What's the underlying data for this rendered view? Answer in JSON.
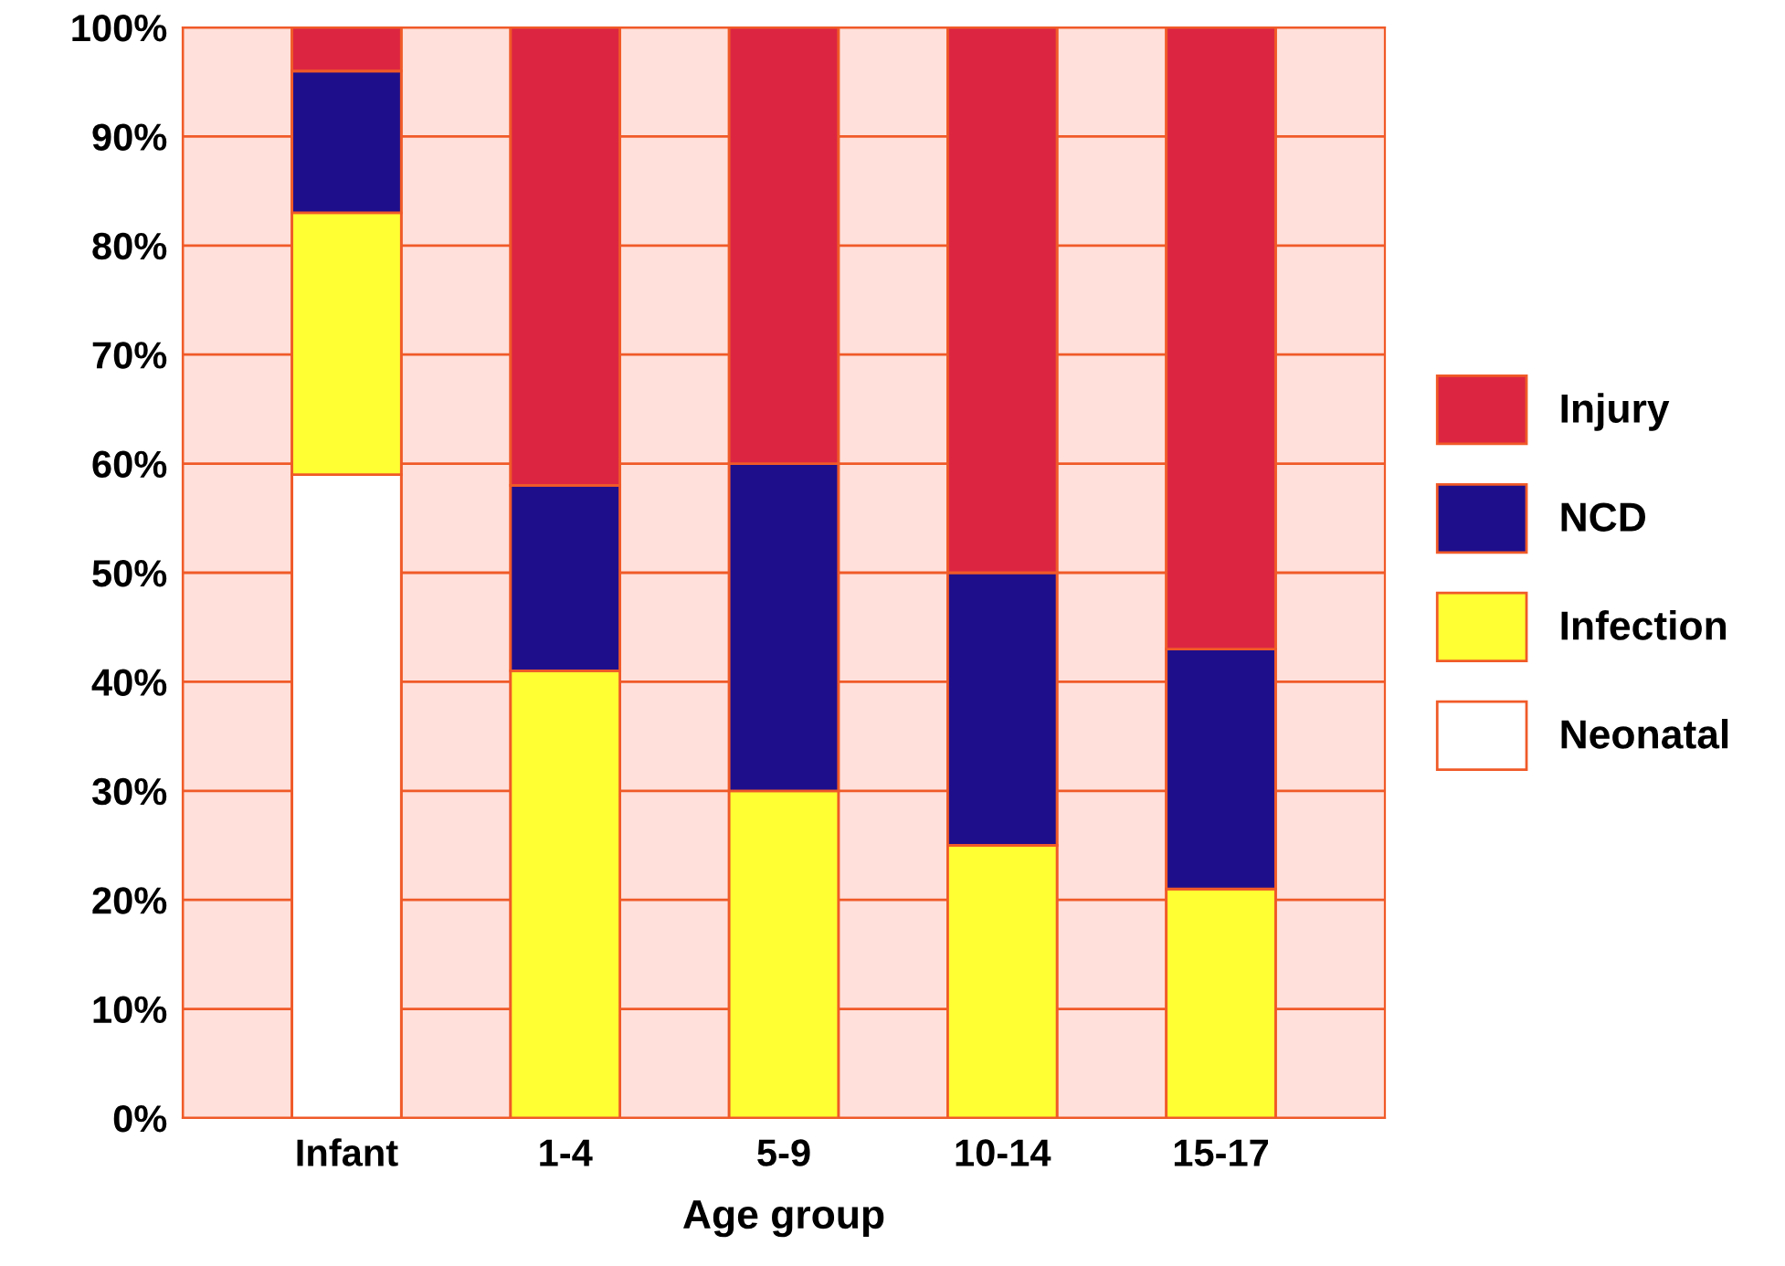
{
  "chart_data": {
    "type": "bar",
    "stacked": true,
    "xlabel": "Age group",
    "categories": [
      "Infant",
      "1-4",
      "5-9",
      "10-14",
      "15-17"
    ],
    "series": [
      {
        "name": "Neonatal",
        "color": "#ffffff",
        "values": [
          59,
          0,
          0,
          0,
          0
        ]
      },
      {
        "name": "Infection",
        "color": "#ffff33",
        "values": [
          24,
          41,
          30,
          25,
          21
        ]
      },
      {
        "name": "NCD",
        "color": "#1f0e8b",
        "values": [
          13,
          17,
          30,
          25,
          22
        ]
      },
      {
        "name": "Injury",
        "color": "#dc2641",
        "values": [
          4,
          42,
          40,
          50,
          57
        ]
      }
    ],
    "ylim": [
      0,
      100
    ],
    "yticks": [
      {
        "value": 0,
        "label": "0%"
      },
      {
        "value": 10,
        "label": "10%"
      },
      {
        "value": 20,
        "label": "20%"
      },
      {
        "value": 30,
        "label": "30%"
      },
      {
        "value": 40,
        "label": "40%"
      },
      {
        "value": 50,
        "label": "50%"
      },
      {
        "value": 60,
        "label": "60%"
      },
      {
        "value": 70,
        "label": "70%"
      },
      {
        "value": 80,
        "label": "80%"
      },
      {
        "value": 90,
        "label": "90%"
      },
      {
        "value": 100,
        "label": "100%"
      }
    ],
    "grid": true,
    "legend": "right"
  }
}
